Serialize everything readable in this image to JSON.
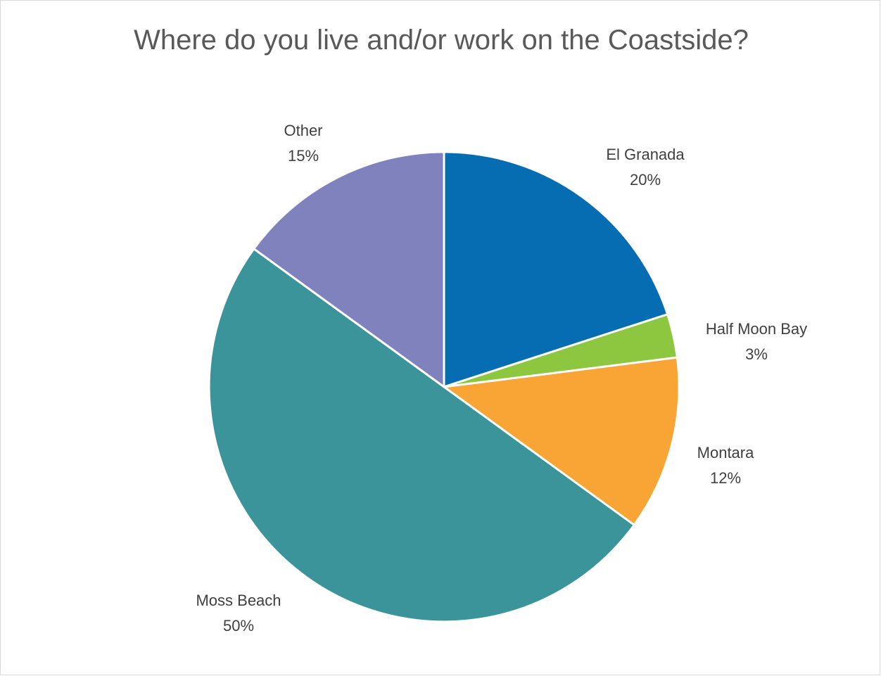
{
  "chart_data": {
    "type": "pie",
    "title": "Where do you live and/or work on the Coastside?",
    "slices": [
      {
        "name": "El Granada",
        "value": 20,
        "label": "20%",
        "color": "#066DB3"
      },
      {
        "name": "Half Moon Bay",
        "value": 3,
        "label": "3%",
        "color": "#8DC63F"
      },
      {
        "name": "Montara",
        "value": 12,
        "label": "12%",
        "color": "#F8A535"
      },
      {
        "name": "Moss Beach",
        "value": 50,
        "label": "50%",
        "color": "#3B9499"
      },
      {
        "name": "Other",
        "value": 15,
        "label": "15%",
        "color": "#7F82BD"
      }
    ],
    "legend": "none",
    "start_angle": "12 o'clock, clockwise"
  }
}
